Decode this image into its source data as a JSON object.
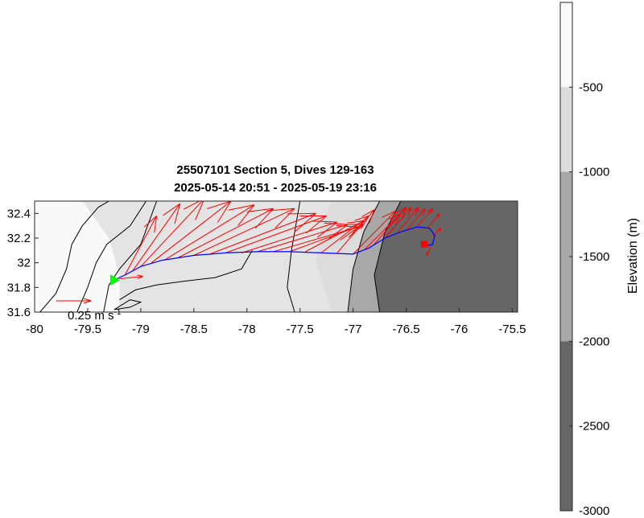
{
  "chart_data": {
    "type": "map",
    "title_line1": "25507101 Section 5, Dives 129-163",
    "title_line2": "2025-05-14 20:51 - 2025-05-19 23:16",
    "xlim": [
      -80,
      -75.45
    ],
    "ylim": [
      31.6,
      32.5
    ],
    "xticks": [
      -80,
      -79.5,
      -79,
      -78.5,
      -78,
      -77.5,
      -77,
      -76.5,
      -76,
      -75.5
    ],
    "xtick_labels": [
      "-80",
      "-79.5",
      "-79",
      "-78.5",
      "-78",
      "-77.5",
      "-77",
      "-76.5",
      "-76",
      "-75.5"
    ],
    "yticks": [
      31.6,
      31.8,
      32,
      32.2,
      32.4
    ],
    "ytick_labels": [
      "31.6",
      "31.8",
      "32",
      "32.2",
      "32.4"
    ],
    "scale_arrow_label": "0.25 m s",
    "scale_arrow_exponent": "-1",
    "colorbar": {
      "label": "Elevation (m)",
      "range": [
        -3000,
        0
      ],
      "ticks": [
        -500,
        -1000,
        -1500,
        -2000,
        -2500,
        -3000
      ],
      "tick_labels": [
        "-500",
        "-1000",
        "-1500",
        "-2000",
        "-2500",
        "-3000"
      ],
      "bands": [
        {
          "from": -500,
          "to": 0,
          "color": "#f9f9f9"
        },
        {
          "from": -1000,
          "to": -500,
          "color": "#dcdcdc"
        },
        {
          "from": -2000,
          "to": -1000,
          "color": "#a8a8a8"
        },
        {
          "from": -3000,
          "to": -2000,
          "color": "#666666"
        }
      ]
    },
    "track_color": "#0000ff",
    "current_arrow_color": "#ff0000",
    "start_marker_color": "#00ff00",
    "end_marker_color": "#ff0000",
    "track": [
      [
        -79.25,
        31.86
      ],
      [
        -79.15,
        31.9
      ],
      [
        -79.0,
        31.97
      ],
      [
        -78.8,
        32.02
      ],
      [
        -78.5,
        32.06
      ],
      [
        -78.2,
        32.08
      ],
      [
        -77.9,
        32.09
      ],
      [
        -77.6,
        32.09
      ],
      [
        -77.3,
        32.08
      ],
      [
        -77.0,
        32.07
      ],
      [
        -76.85,
        32.12
      ],
      [
        -76.7,
        32.2
      ],
      [
        -76.55,
        32.25
      ],
      [
        -76.4,
        32.29
      ],
      [
        -76.28,
        32.28
      ],
      [
        -76.23,
        32.22
      ],
      [
        -76.25,
        32.15
      ],
      [
        -76.3,
        32.14
      ],
      [
        -76.33,
        32.15
      ]
    ],
    "start": [
      -79.25,
      31.86
    ],
    "end": [
      -76.33,
      32.15
    ],
    "currents": [
      {
        "lon": -79.2,
        "lat": 31.87,
        "dlon": 0.22,
        "dlat": 0.02
      },
      {
        "lon": -79.15,
        "lat": 31.9,
        "dlon": 0.3,
        "dlat": 0.48
      },
      {
        "lon": -79.08,
        "lat": 31.93,
        "dlon": 0.45,
        "dlat": 0.55
      },
      {
        "lon": -79.0,
        "lat": 31.97,
        "dlon": 0.6,
        "dlat": 0.55
      },
      {
        "lon": -78.9,
        "lat": 32.0,
        "dlon": 0.75,
        "dlat": 0.5
      },
      {
        "lon": -78.78,
        "lat": 32.02,
        "dlon": 0.85,
        "dlat": 0.45
      },
      {
        "lon": -78.65,
        "lat": 32.04,
        "dlon": 0.9,
        "dlat": 0.4
      },
      {
        "lon": -78.5,
        "lat": 32.06,
        "dlon": 0.95,
        "dlat": 0.38
      },
      {
        "lon": -78.35,
        "lat": 32.07,
        "dlon": 1.0,
        "dlat": 0.33
      },
      {
        "lon": -78.2,
        "lat": 32.08,
        "dlon": 0.95,
        "dlat": 0.3
      },
      {
        "lon": -78.05,
        "lat": 32.08,
        "dlon": 0.9,
        "dlat": 0.25
      },
      {
        "lon": -77.9,
        "lat": 32.09,
        "dlon": 0.85,
        "dlat": 0.22
      },
      {
        "lon": -77.75,
        "lat": 32.09,
        "dlon": 0.8,
        "dlat": 0.2
      },
      {
        "lon": -77.6,
        "lat": 32.09,
        "dlon": 0.7,
        "dlat": 0.22
      },
      {
        "lon": -77.45,
        "lat": 32.09,
        "dlon": 0.55,
        "dlat": 0.25
      },
      {
        "lon": -77.3,
        "lat": 32.08,
        "dlon": 0.45,
        "dlat": 0.3
      },
      {
        "lon": -77.15,
        "lat": 32.08,
        "dlon": 0.35,
        "dlat": 0.35
      },
      {
        "lon": -77.0,
        "lat": 32.07,
        "dlon": 0.4,
        "dlat": 0.35
      },
      {
        "lon": -76.9,
        "lat": 32.1,
        "dlon": 0.35,
        "dlat": 0.3
      },
      {
        "lon": -76.8,
        "lat": 32.15,
        "dlon": 0.3,
        "dlat": 0.3
      },
      {
        "lon": -76.7,
        "lat": 32.2,
        "dlon": 0.25,
        "dlat": 0.25
      },
      {
        "lon": -76.6,
        "lat": 32.23,
        "dlon": 0.22,
        "dlat": 0.22
      },
      {
        "lon": -76.5,
        "lat": 32.26,
        "dlon": 0.18,
        "dlat": 0.18
      },
      {
        "lon": -76.4,
        "lat": 32.29,
        "dlon": 0.15,
        "dlat": 0.15
      },
      {
        "lon": -76.3,
        "lat": 32.28,
        "dlon": 0.12,
        "dlat": 0.12
      },
      {
        "lon": -76.25,
        "lat": 32.22,
        "dlon": 0.08,
        "dlat": 0.06
      },
      {
        "lon": -76.26,
        "lat": 32.14,
        "dlon": -0.05,
        "dlat": -0.08
      }
    ],
    "regions": [
      {
        "band": "shelf",
        "color": "#f9f9f9",
        "points": [
          [
            -80,
            31.6
          ],
          [
            -80,
            32.5
          ],
          [
            -79.55,
            32.5
          ],
          [
            -79.3,
            32.2
          ],
          [
            -79.2,
            31.9
          ],
          [
            -79.2,
            31.6
          ]
        ]
      },
      {
        "band": "slope_upper",
        "color": "#e4e4e4",
        "points": [
          [
            -79.2,
            31.6
          ],
          [
            -79.2,
            31.9
          ],
          [
            -79.3,
            32.2
          ],
          [
            -79.55,
            32.5
          ],
          [
            -77.2,
            32.5
          ],
          [
            -77.3,
            32.3
          ],
          [
            -77.35,
            32.0
          ],
          [
            -77.2,
            31.6
          ]
        ]
      },
      {
        "band": "mid",
        "color": "#dcdcdc",
        "points": [
          [
            -77.2,
            31.6
          ],
          [
            -77.35,
            32.0
          ],
          [
            -77.3,
            32.3
          ],
          [
            -77.2,
            32.5
          ],
          [
            -76.75,
            32.5
          ],
          [
            -76.9,
            32.25
          ],
          [
            -77.0,
            31.95
          ],
          [
            -77.05,
            31.6
          ]
        ]
      },
      {
        "band": "deep1",
        "color": "#a8a8a8",
        "points": [
          [
            -77.05,
            31.6
          ],
          [
            -77.0,
            31.95
          ],
          [
            -76.9,
            32.25
          ],
          [
            -76.75,
            32.5
          ],
          [
            -76.55,
            32.5
          ],
          [
            -76.7,
            32.25
          ],
          [
            -76.8,
            31.9
          ],
          [
            -76.75,
            31.6
          ]
        ]
      },
      {
        "band": "deep2",
        "color": "#666666",
        "points": [
          [
            -76.75,
            31.6
          ],
          [
            -76.8,
            31.9
          ],
          [
            -76.7,
            32.25
          ],
          [
            -76.55,
            32.5
          ],
          [
            -75.45,
            32.5
          ],
          [
            -75.45,
            31.6
          ]
        ]
      }
    ],
    "contours": [
      [
        [
          -79.95,
          31.6
        ],
        [
          -79.8,
          31.75
        ],
        [
          -79.7,
          31.95
        ],
        [
          -79.65,
          32.15
        ],
        [
          -79.55,
          32.3
        ],
        [
          -79.4,
          32.45
        ],
        [
          -79.3,
          32.5
        ]
      ],
      [
        [
          -79.6,
          31.6
        ],
        [
          -79.5,
          31.8
        ],
        [
          -79.42,
          32.0
        ],
        [
          -79.32,
          32.15
        ],
        [
          -79.1,
          32.3
        ],
        [
          -78.95,
          32.5
        ]
      ],
      [
        [
          -79.35,
          31.6
        ],
        [
          -79.3,
          31.82
        ],
        [
          -79.2,
          31.95
        ],
        [
          -79.0,
          32.15
        ],
        [
          -78.85,
          32.5
        ]
      ],
      [
        [
          -79.25,
          31.62
        ],
        [
          -79.1,
          31.7
        ],
        [
          -79.0,
          31.68
        ],
        [
          -79.1,
          31.64
        ],
        [
          -79.25,
          31.62
        ]
      ],
      [
        [
          -79.2,
          31.7
        ],
        [
          -79.05,
          31.78
        ],
        [
          -78.85,
          31.82
        ],
        [
          -78.6,
          31.85
        ],
        [
          -78.3,
          31.88
        ],
        [
          -78.05,
          31.95
        ],
        [
          -77.95,
          32.1
        ]
      ],
      [
        [
          -77.55,
          31.6
        ],
        [
          -77.62,
          31.8
        ],
        [
          -77.58,
          32.1
        ],
        [
          -77.5,
          32.5
        ]
      ],
      [
        [
          -77.05,
          31.6
        ],
        [
          -77.0,
          31.95
        ],
        [
          -76.9,
          32.25
        ],
        [
          -76.75,
          32.5
        ]
      ],
      [
        [
          -76.75,
          31.6
        ],
        [
          -76.8,
          31.9
        ],
        [
          -76.7,
          32.25
        ],
        [
          -76.55,
          32.5
        ]
      ]
    ]
  }
}
